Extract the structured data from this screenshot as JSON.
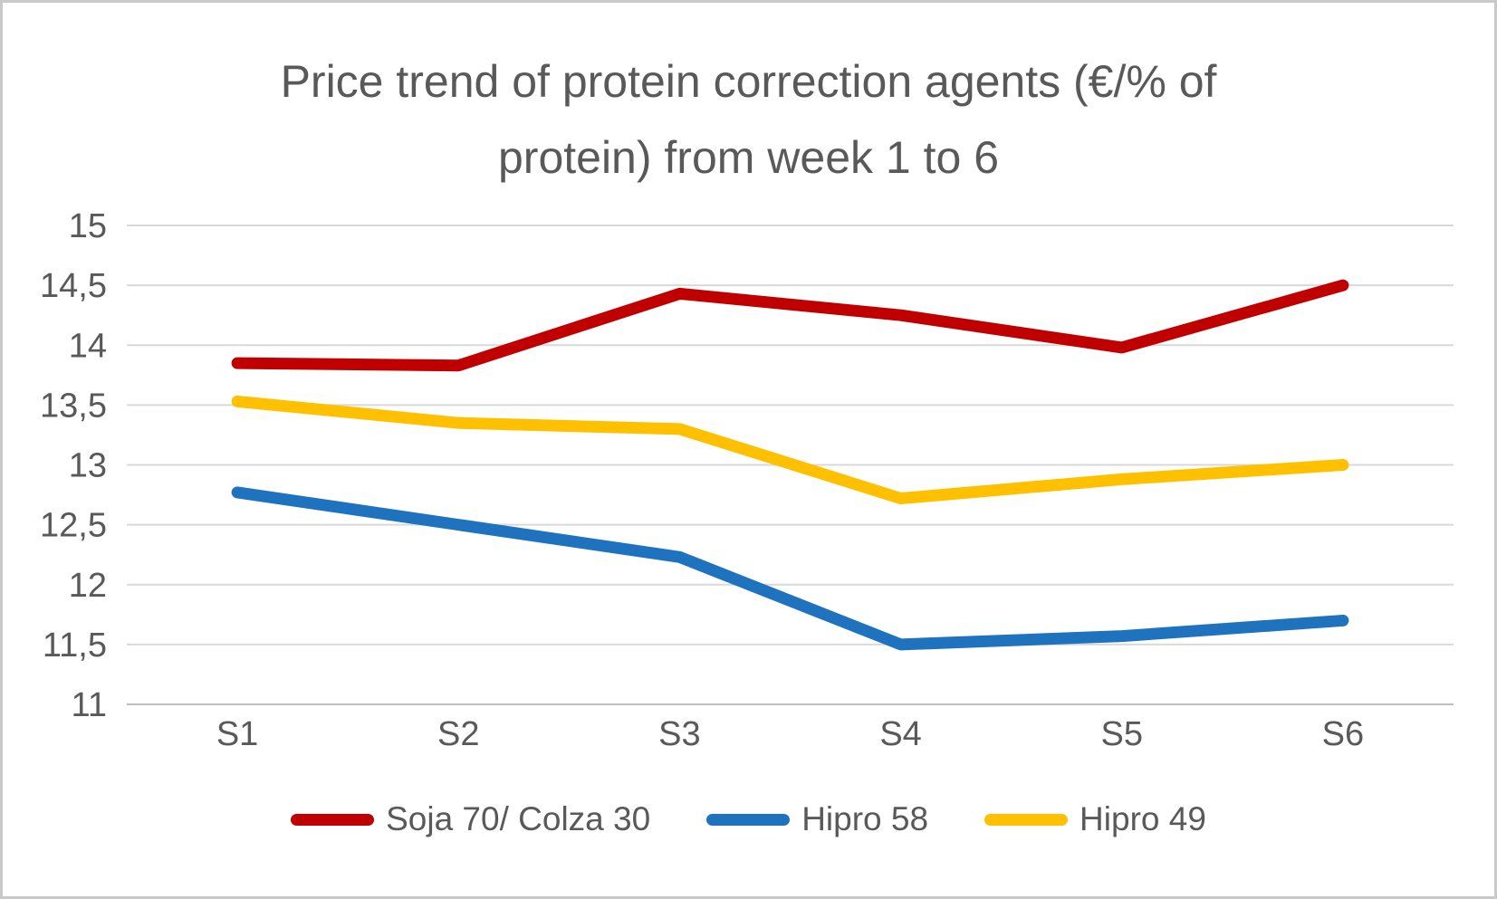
{
  "title": "Price trend of protein correction agents (€/% of protein) from week 1 to 6",
  "title_lines": [
    "Price trend of protein correction agents (€/% of",
    "protein) from week 1 to 6"
  ],
  "colors": {
    "background": "#FFFFFF",
    "frame_border": "#C9C9C9",
    "gridline": "#D9D9D9",
    "axis_line": "#BFBFBF",
    "text": "#595959"
  },
  "chart_data": {
    "type": "line",
    "categories": [
      "S1",
      "S2",
      "S3",
      "S4",
      "S5",
      "S6"
    ],
    "series": [
      {
        "name": "Soja 70/ Colza 30",
        "color": "#C00000",
        "values": [
          13.85,
          13.83,
          14.43,
          14.25,
          13.98,
          14.5
        ]
      },
      {
        "name": "Hipro 58",
        "color": "#1F72BE",
        "values": [
          12.77,
          12.5,
          12.23,
          11.5,
          11.57,
          11.7
        ]
      },
      {
        "name": "Hipro 49",
        "color": "#FFC000",
        "values": [
          13.53,
          13.35,
          13.3,
          12.72,
          12.88,
          13.0
        ]
      }
    ],
    "title": "Price trend of protein correction agents (€/% of protein) from week 1 to 6",
    "xlabel": "",
    "ylabel": "",
    "ylim": [
      11,
      15
    ],
    "ytick_step": 0.5,
    "ytick_labels": [
      "15",
      "14,5",
      "14",
      "13,5",
      "13",
      "12,5",
      "12",
      "11,5",
      "11"
    ],
    "decimal_separator": ",",
    "grid": true,
    "legend_position": "bottom"
  }
}
